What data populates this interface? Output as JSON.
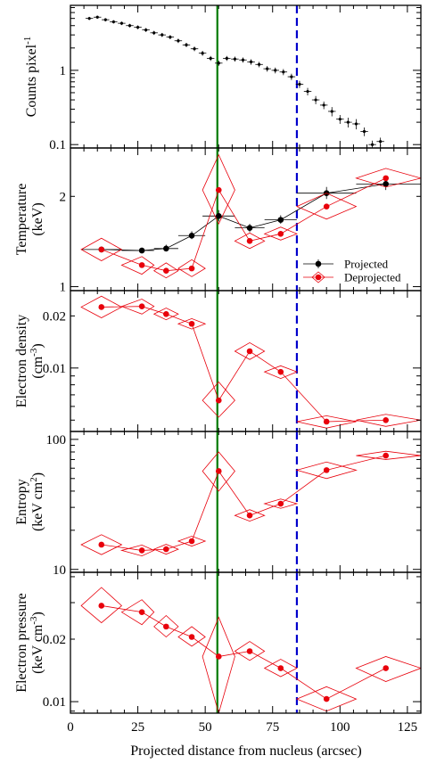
{
  "chart_data": {
    "type": "scatter",
    "xlabel": "Projected distance from nucleus (arcsec)",
    "xlim": [
      0,
      130
    ],
    "xticks": [
      0,
      25,
      50,
      75,
      100,
      125
    ],
    "markers": {
      "solid_line_x": 54.5,
      "dashed_line_x": 84,
      "solid_color": "#007a00",
      "dashed_color": "#0000cc"
    },
    "colors": {
      "projected": "#000000",
      "deprojected": "#e8000b",
      "deprojected_box": "#e8000b"
    },
    "legend": {
      "placement": "bottom-right of temperature panel",
      "entries": [
        "Projected",
        "Deprojected"
      ]
    },
    "panels": [
      {
        "id": "counts",
        "ylabel": "Counts pixel",
        "ylabel_sup": "-1",
        "yscale": "log",
        "ylim": [
          0.09,
          7.5
        ],
        "yticks": [
          0.1,
          1
        ],
        "ytick_labels": [
          "0.1",
          "1"
        ],
        "series": [
          {
            "style": "points",
            "x": [
              7,
              10,
              13,
              16,
              19,
              22,
              25,
              28,
              31,
              34,
              37,
              40,
              43,
              46,
              49,
              52,
              55,
              58,
              61,
              64,
              67,
              70,
              73,
              76,
              79,
              82,
              85,
              88,
              91,
              94,
              97,
              100,
              103,
              106,
              109,
              112,
              115
            ],
            "y": [
              5.0,
              5.2,
              4.8,
              4.5,
              4.3,
              4.0,
              3.8,
              3.5,
              3.2,
              3.0,
              2.8,
              2.5,
              2.2,
              1.95,
              1.7,
              1.45,
              1.25,
              1.45,
              1.42,
              1.38,
              1.3,
              1.2,
              1.05,
              1.0,
              0.95,
              0.82,
              0.65,
              0.52,
              0.4,
              0.34,
              0.28,
              0.22,
              0.2,
              0.19,
              0.15,
              0.1,
              0.11
            ],
            "xerr": 1.4,
            "ylow": [
              4.75,
              4.95,
              4.56,
              4.27,
              4.07,
              3.78,
              3.58,
              3.29,
              3.0,
              2.81,
              2.62,
              2.33,
              2.05,
              1.81,
              1.57,
              1.34,
              1.15,
              1.34,
              1.31,
              1.27,
              1.19,
              1.1,
              0.96,
              0.91,
              0.86,
              0.74,
              0.58,
              0.46,
              0.35,
              0.3,
              0.24,
              0.19,
              0.17,
              0.16,
              0.13,
              0.087,
              0.096
            ],
            "yhigh": [
              5.25,
              5.45,
              5.04,
              4.73,
              4.53,
              4.22,
              4.02,
              3.71,
              3.4,
              3.19,
              2.98,
              2.67,
              2.35,
              2.09,
              1.83,
              1.56,
              1.35,
              1.56,
              1.53,
              1.49,
              1.41,
              1.3,
              1.14,
              1.09,
              1.04,
              0.9,
              0.72,
              0.58,
              0.45,
              0.38,
              0.32,
              0.25,
              0.23,
              0.22,
              0.17,
              0.113,
              0.124
            ]
          }
        ]
      },
      {
        "id": "temperature",
        "ylabel": "Temperature",
        "ylabel2": "(keV)",
        "yscale": "log",
        "ylim": [
          0.97,
          2.9
        ],
        "yticks": [
          1,
          2
        ],
        "ytick_labels": [
          "1",
          "2"
        ],
        "series": [
          {
            "name": "Projected",
            "style": "projected",
            "x": [
              11.5,
              26.5,
              35.5,
              45,
              55,
              66.5,
              78,
              95,
              117
            ],
            "y": [
              1.33,
              1.32,
              1.34,
              1.48,
              1.72,
              1.57,
              1.67,
              2.05,
              2.2
            ],
            "xlow": [
              4,
              19,
              31,
              40,
              49,
              61,
              72,
              84,
              106
            ],
            "xhigh": [
              19,
              31,
              40,
              50,
              61,
              72,
              84,
              106,
              130
            ],
            "ylow": [
              1.3,
              1.29,
              1.31,
              1.44,
              1.65,
              1.52,
              1.62,
              1.96,
              2.1
            ],
            "yhigh": [
              1.36,
              1.35,
              1.38,
              1.53,
              1.8,
              1.62,
              1.73,
              2.15,
              2.3
            ]
          },
          {
            "name": "Deprojected",
            "style": "deprojected",
            "x": [
              11.5,
              26.5,
              35.5,
              45,
              55,
              66.5,
              78,
              95,
              117
            ],
            "y": [
              1.33,
              1.18,
              1.13,
              1.15,
              2.1,
              1.42,
              1.5,
              1.85,
              2.3
            ],
            "xlow": [
              4,
              19,
              31,
              40,
              49,
              61,
              72,
              84,
              106
            ],
            "xhigh": [
              19,
              31,
              40,
              50,
              61,
              72,
              84,
              106,
              130
            ],
            "ylow": [
              1.22,
              1.1,
              1.07,
              1.08,
              1.62,
              1.34,
              1.43,
              1.68,
              2.15
            ],
            "yhigh": [
              1.45,
              1.26,
              1.2,
              1.23,
              2.75,
              1.51,
              1.58,
              2.05,
              2.48
            ]
          }
        ]
      },
      {
        "id": "density",
        "ylabel": "Electron density",
        "ylabel2": "(cm",
        "ylabel2_sup": "-3",
        "ylabel2_end": ")",
        "yscale": "log",
        "ylim": [
          0.0043,
          0.028
        ],
        "yticks": [
          0.01,
          0.02
        ],
        "ytick_labels": [
          "0.01",
          "0.02"
        ],
        "series": [
          {
            "name": "Deprojected",
            "style": "deprojected",
            "x": [
              11.5,
              26.5,
              35.5,
              45,
              55,
              66.5,
              78,
              95,
              117
            ],
            "y": [
              0.0225,
              0.0227,
              0.0205,
              0.018,
              0.0065,
              0.0125,
              0.0095,
              0.0049,
              0.005
            ],
            "xlow": [
              4,
              19,
              31,
              40,
              49,
              61,
              72,
              84,
              106
            ],
            "xhigh": [
              19,
              31,
              40,
              50,
              61,
              72,
              84,
              106,
              130
            ],
            "ylow": [
              0.0195,
              0.0205,
              0.019,
              0.0168,
              0.0052,
              0.0112,
              0.0087,
              0.0045,
              0.0046
            ],
            "yhigh": [
              0.026,
              0.025,
              0.0222,
              0.0193,
              0.0083,
              0.014,
              0.0103,
              0.0053,
              0.0054
            ]
          }
        ]
      },
      {
        "id": "entropy",
        "ylabel": "Entropy",
        "ylabel2": "(keV cm",
        "ylabel2_sup": "2",
        "ylabel2_end": ")",
        "yscale": "log",
        "ylim": [
          9.5,
          115
        ],
        "yticks": [
          10,
          100
        ],
        "ytick_labels": [
          "10",
          "100"
        ],
        "series": [
          {
            "name": "Deprojected",
            "style": "deprojected",
            "x": [
              11.5,
              26.5,
              35.5,
              45,
              55,
              66.5,
              78,
              95,
              117
            ],
            "y": [
              15.5,
              14.0,
              14.3,
              16.5,
              57,
              26,
              32,
              58,
              75
            ],
            "xlow": [
              4,
              19,
              31,
              40,
              49,
              61,
              72,
              84,
              106
            ],
            "xhigh": [
              19,
              31,
              40,
              50,
              61,
              72,
              84,
              106,
              130
            ],
            "ylow": [
              13.0,
              12.7,
              13.1,
              15.1,
              40,
              23.5,
              29.5,
              50,
              70
            ],
            "yhigh": [
              18.5,
              15.4,
              15.6,
              18.0,
              80,
              28.8,
              34.8,
              67,
              81
            ]
          }
        ]
      },
      {
        "id": "pressure",
        "ylabel": "Electron pressure",
        "ylabel2": "(keV cm",
        "ylabel2_sup": "-3",
        "ylabel2_end": ")",
        "yscale": "log",
        "ylim": [
          0.0088,
          0.042
        ],
        "yticks": [
          0.01,
          0.02
        ],
        "ytick_labels": [
          "0.01",
          "0.02"
        ],
        "series": [
          {
            "name": "Deprojected",
            "style": "deprojected",
            "x": [
              11.5,
              26.5,
              35.5,
              45,
              55,
              66.5,
              78,
              95,
              117
            ],
            "y": [
              0.029,
              0.027,
              0.023,
              0.0205,
              0.0165,
              0.0175,
              0.0145,
              0.0103,
              0.0145
            ],
            "xlow": [
              4,
              19,
              31,
              40,
              49,
              61,
              72,
              84,
              106
            ],
            "xhigh": [
              19,
              31,
              40,
              50,
              61,
              72,
              84,
              106,
              130
            ],
            "ylow": [
              0.024,
              0.0235,
              0.0205,
              0.0185,
              0.0088,
              0.0158,
              0.0132,
              0.009,
              0.0125
            ],
            "yhigh": [
              0.0355,
              0.031,
              0.026,
              0.023,
              0.0255,
              0.0195,
              0.016,
              0.0118,
              0.0165
            ]
          }
        ]
      }
    ]
  }
}
